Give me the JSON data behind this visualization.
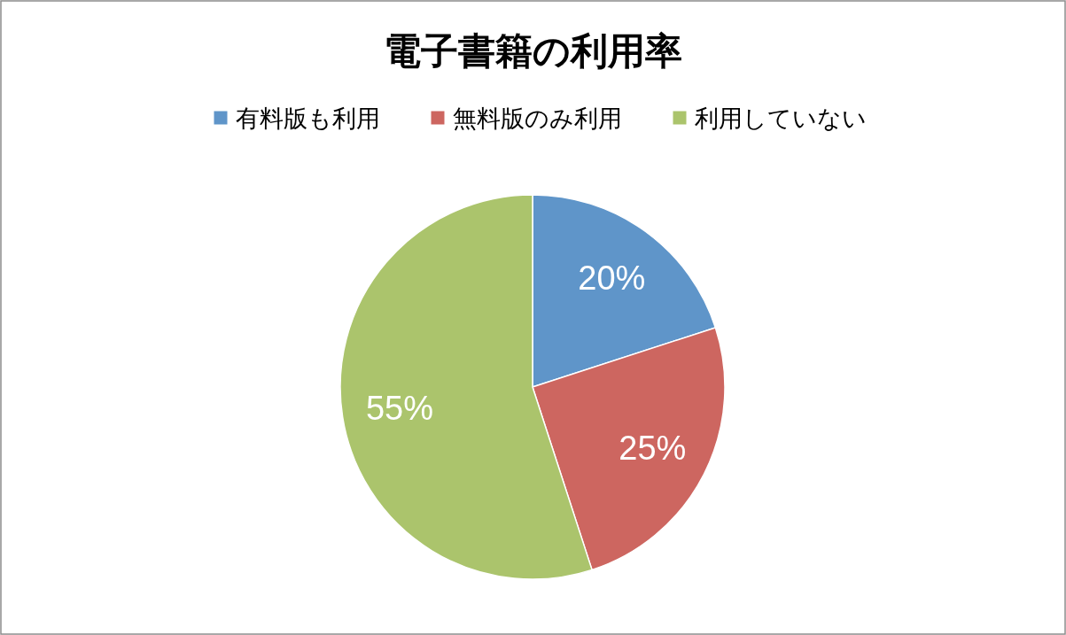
{
  "chart_data": {
    "type": "pie",
    "title": "電子書籍の利用率",
    "categories": [
      "有料版も利用",
      "無料版のみ利用",
      "利用していない"
    ],
    "values": [
      20,
      25,
      55
    ],
    "colors": [
      "#5f95c9",
      "#cd6660",
      "#abc46c"
    ],
    "value_labels": [
      "20%",
      "25%",
      "55%"
    ],
    "legend": "top"
  }
}
